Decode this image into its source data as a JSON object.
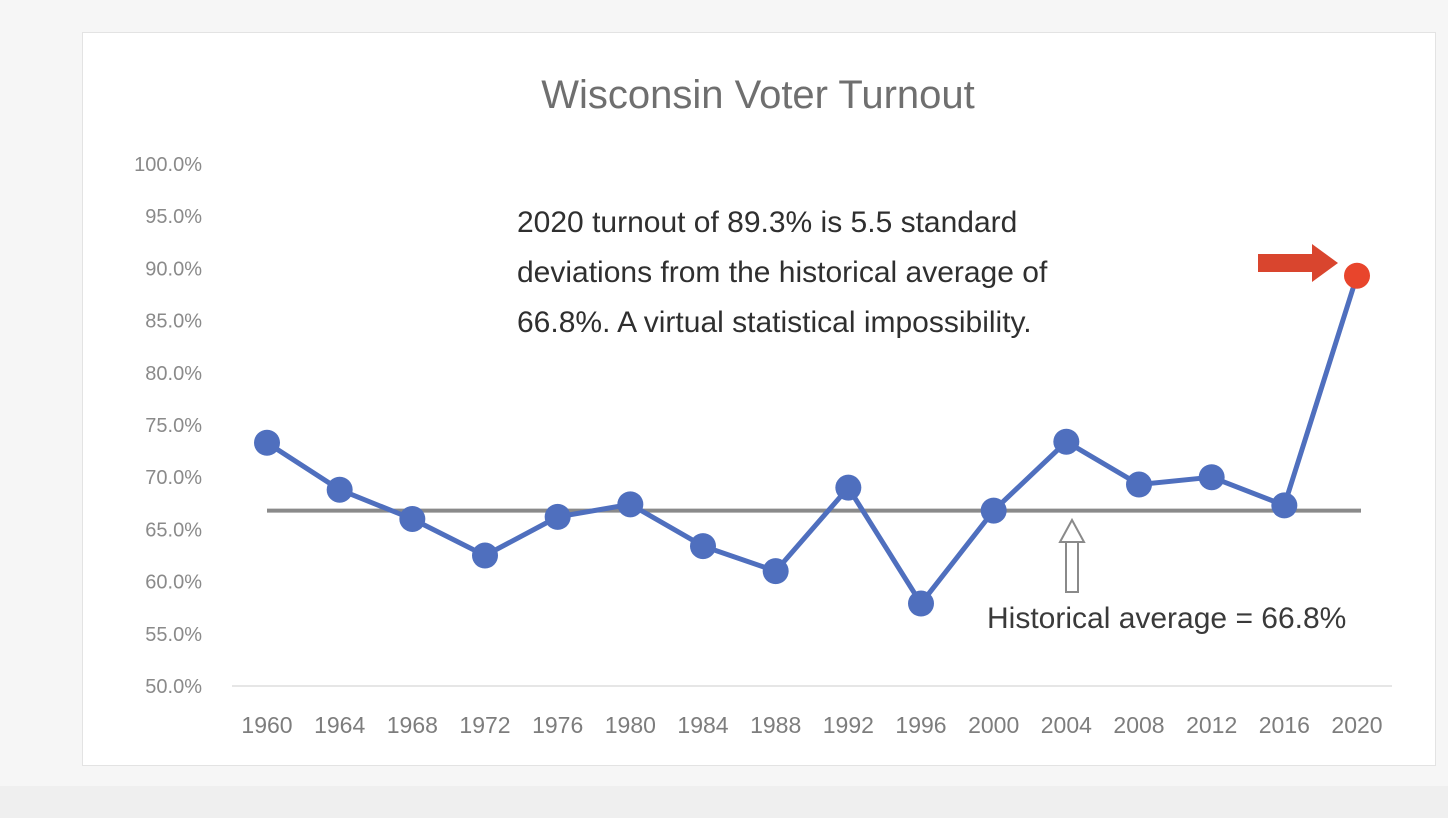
{
  "chart_data": {
    "type": "line",
    "title": "Wisconsin Voter Turnout",
    "x": [
      "1960",
      "1964",
      "1968",
      "1972",
      "1976",
      "1980",
      "1984",
      "1988",
      "1992",
      "1996",
      "2000",
      "2004",
      "2008",
      "2012",
      "2016",
      "2020"
    ],
    "series": [
      {
        "values": [
          73.3,
          68.8,
          66.0,
          62.5,
          66.2,
          67.4,
          63.4,
          61.0,
          69.0,
          57.9,
          66.8,
          73.4,
          69.3,
          70.0,
          67.3,
          89.3
        ],
        "color": "#4f6fbe"
      }
    ],
    "highlight": {
      "index": 15,
      "color": "#e8452c"
    },
    "reference_line": {
      "value": 66.8,
      "color": "#8a8a8a"
    },
    "yticks": [
      "100.0%",
      "95.0%",
      "90.0%",
      "85.0%",
      "80.0%",
      "75.0%",
      "70.0%",
      "65.0%",
      "60.0%",
      "55.0%",
      "50.0%"
    ],
    "ylim": [
      50,
      100
    ],
    "annotation_lines": [
      "2020  turnout of 89.3% is 5.5 standard",
      "deviations from the historical average of",
      "66.8%. A virtual statistical impossibility."
    ],
    "average_label": "Historical average = 66.8%",
    "arrow_color": "#d9452e",
    "grid": false
  }
}
